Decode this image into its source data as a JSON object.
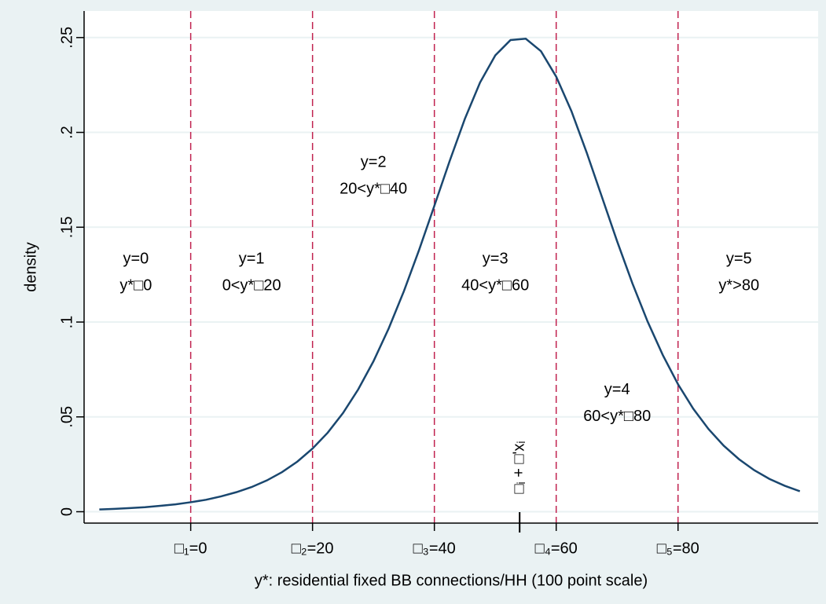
{
  "chart_data": {
    "type": "line",
    "x_label": "y*: residential fixed BB connections/HH (100 point scale)",
    "y_label": "density",
    "x": [
      -15,
      -12.5,
      -10,
      -7.5,
      -5,
      -2.5,
      0,
      2.5,
      5,
      7.5,
      10,
      12.5,
      15,
      17.5,
      20,
      22.5,
      25,
      27.5,
      30,
      32.5,
      35,
      37.5,
      40,
      42.5,
      45,
      47.5,
      50,
      52.5,
      55,
      57.5,
      60,
      62.5,
      65,
      67.5,
      70,
      72.5,
      75,
      77.5,
      80,
      82.5,
      85,
      87.5,
      90,
      92.5,
      95,
      97.5,
      100
    ],
    "series": [
      {
        "name": "density",
        "color": "#1a476f",
        "values": [
          0.0012,
          0.0015,
          0.0019,
          0.0024,
          0.0031,
          0.0039,
          0.005,
          0.0063,
          0.0081,
          0.0103,
          0.013,
          0.0165,
          0.0209,
          0.0264,
          0.0333,
          0.0417,
          0.052,
          0.0645,
          0.0793,
          0.0966,
          0.1163,
          0.1381,
          0.1613,
          0.1848,
          0.2071,
          0.2263,
          0.2406,
          0.2487,
          0.2494,
          0.2428,
          0.2294,
          0.2112,
          0.1894,
          0.166,
          0.1426,
          0.1205,
          0.1003,
          0.0826,
          0.0672,
          0.0543,
          0.0436,
          0.0348,
          0.0277,
          0.0219,
          0.0173,
          0.0137,
          0.0108
        ]
      }
    ],
    "xlim": [
      -17.5,
      103
    ],
    "ylim": [
      -0.006,
      0.264
    ],
    "xticks": [
      {
        "value": 0,
        "label": "□₁=0"
      },
      {
        "value": 20,
        "label": "□₂=20"
      },
      {
        "value": 40,
        "label": "□₃=40"
      },
      {
        "value": 60,
        "label": "□₄=60"
      },
      {
        "value": 80,
        "label": "□₅=80"
      }
    ],
    "yticks": [
      0,
      {
        "value": 0.05,
        "label": ".05"
      },
      {
        "value": 0.1,
        "label": ".1"
      },
      {
        "value": 0.15,
        "label": ".15"
      },
      {
        "value": 0.2,
        "label": ".2"
      },
      {
        "value": 0.25,
        "label": ".25"
      }
    ],
    "grid": true,
    "cutpoint_color": "#c1224f",
    "regions": [
      {
        "label": "y=0",
        "condition": "y*□0",
        "x": -9,
        "y": 0.126
      },
      {
        "label": "y=1",
        "condition": "0<y*□20",
        "x": 10,
        "y": 0.126
      },
      {
        "label": "y=2",
        "condition": "20<y*□40",
        "x": 30,
        "y": 0.177
      },
      {
        "label": "y=3",
        "condition": "40<y*□60",
        "x": 50,
        "y": 0.126
      },
      {
        "label": "y=4",
        "condition": "60<y*□80",
        "x": 70,
        "y": 0.057
      },
      {
        "label": "y=5",
        "condition": "y*>80",
        "x": 90,
        "y": 0.126
      }
    ],
    "annotations": [
      {
        "text": "□ᵢ + □'xᵢ",
        "x": 54
      }
    ]
  }
}
